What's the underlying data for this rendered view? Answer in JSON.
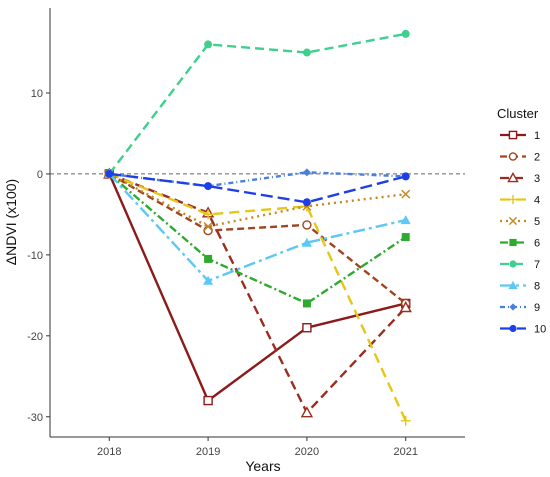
{
  "chart_data": {
    "type": "line",
    "xlabel": "Years",
    "ylabel": "ΔNDVI (x100)",
    "x": [
      2018,
      2019,
      2020,
      2021
    ],
    "x_tick_labels": [
      "2018",
      "2019",
      "2020",
      "2021"
    ],
    "xlim": [
      2017.4,
      2021.6
    ],
    "ylim": [
      -32.5,
      20.5
    ],
    "y_ticks": [
      10,
      0,
      -10,
      -20,
      -30
    ],
    "y_tick_labels": [
      "10",
      "0",
      "-10",
      "-20",
      "-30"
    ],
    "reference_line_y": 0,
    "grid": false,
    "legend": {
      "title": "Cluster",
      "position": "right"
    },
    "series": [
      {
        "name": "1",
        "values": [
          0,
          -28,
          -19,
          -16
        ],
        "color": "#8b1a1a",
        "dash": "",
        "marker": "square-open"
      },
      {
        "name": "2",
        "values": [
          0,
          -7,
          -6.3,
          -16
        ],
        "color": "#a0451f",
        "dash": "7,4",
        "marker": "circle-open"
      },
      {
        "name": "3",
        "values": [
          0,
          -4.8,
          -29.5,
          -16.5
        ],
        "color": "#9b2d20",
        "dash": "9,5",
        "marker": "triangle-open"
      },
      {
        "name": "4",
        "values": [
          0,
          -5,
          -4,
          -30.5
        ],
        "color": "#e6c619",
        "dash": "10,6",
        "marker": "plus"
      },
      {
        "name": "5",
        "values": [
          0,
          -6.5,
          -4,
          -2.5
        ],
        "color": "#c8861f",
        "dash": "2,4",
        "marker": "x"
      },
      {
        "name": "6",
        "values": [
          0,
          -10.5,
          -16,
          -7.8
        ],
        "color": "#2eaa2e",
        "dash": "8,3,2,3",
        "marker": "square"
      },
      {
        "name": "7",
        "values": [
          0,
          16,
          15,
          17.3
        ],
        "color": "#3fcf8e",
        "dash": "9,5",
        "marker": "circle"
      },
      {
        "name": "8",
        "values": [
          0,
          -13.2,
          -8.5,
          -5.7
        ],
        "color": "#5bc8f5",
        "dash": "12,4,3,4",
        "marker": "triangle"
      },
      {
        "name": "9",
        "values": [
          0,
          -1.5,
          0.2,
          -0.3
        ],
        "color": "#4a7fe0",
        "dash": "5,3,1,3",
        "marker": "diamond"
      },
      {
        "name": "10",
        "values": [
          0,
          -1.5,
          -3.5,
          -0.3
        ],
        "color": "#1f3fe6",
        "dash": "12,5",
        "marker": "circle"
      }
    ]
  }
}
